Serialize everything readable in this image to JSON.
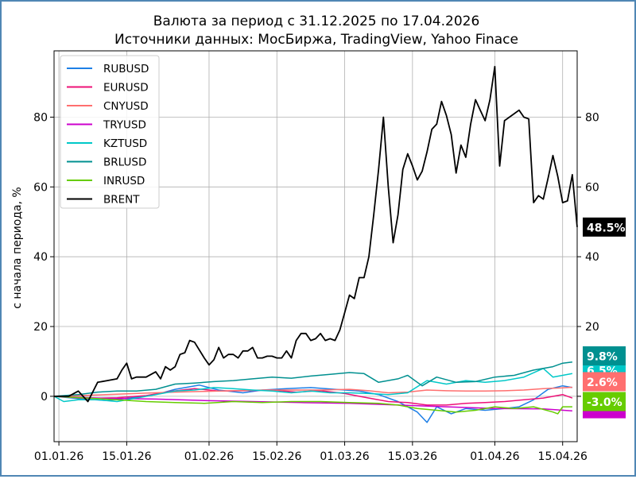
{
  "chart_data": {
    "type": "line",
    "title": "Валюта за период с 31.12.2025 по 17.04.2026",
    "subtitle": "Источники данных: МосБиржа, TradingView, Yahoo Finace",
    "ylabel": "с начала периода, %",
    "xlabel": "",
    "ylim": [
      -13,
      99
    ],
    "xlim": [
      -1,
      107
    ],
    "grid": true,
    "legend_position": "top-left",
    "x_ticks": [
      {
        "x": 0,
        "label": "01.01.26"
      },
      {
        "x": 14,
        "label": "15.01.26"
      },
      {
        "x": 31,
        "label": "01.02.26"
      },
      {
        "x": 45,
        "label": "15.02.26"
      },
      {
        "x": 59,
        "label": "01.03.26"
      },
      {
        "x": 73,
        "label": "15.03.26"
      },
      {
        "x": 90,
        "label": "01.04.26"
      },
      {
        "x": 104,
        "label": "15.04.26"
      }
    ],
    "y_ticks": [
      0,
      20,
      40,
      60,
      80
    ],
    "end_labels": [
      {
        "series": "BRENT",
        "label": "48.5%",
        "color": "#000000"
      },
      {
        "series": "BRLUSD",
        "label": "9.8%",
        "color": "#009090"
      },
      {
        "series": "KZTUSD",
        "label": "6.5%",
        "color": "#00c8c8"
      },
      {
        "series": "CNYUSD",
        "label": "2.6%",
        "color": "#ff6f6f"
      },
      {
        "series": "INRUSD",
        "label": "-3.0%",
        "color": "#66cc00"
      }
    ],
    "series": [
      {
        "name": "RUBUSD",
        "color": "#1e7fe6",
        "points": [
          [
            -1,
            0
          ],
          [
            5,
            -0.8
          ],
          [
            10,
            -1.2
          ],
          [
            15,
            -0.4
          ],
          [
            20,
            0.5
          ],
          [
            24,
            2.0
          ],
          [
            29,
            3.2
          ],
          [
            33,
            1.8
          ],
          [
            38,
            1.0
          ],
          [
            42,
            1.8
          ],
          [
            47,
            2.2
          ],
          [
            52,
            2.5
          ],
          [
            57,
            2.0
          ],
          [
            62,
            1.5
          ],
          [
            66,
            0.5
          ],
          [
            70,
            -1.5
          ],
          [
            74,
            -4.5
          ],
          [
            76,
            -7.5
          ],
          [
            78,
            -3.0
          ],
          [
            81,
            -5.0
          ],
          [
            84,
            -3.5
          ],
          [
            88,
            -4.0
          ],
          [
            92,
            -3.5
          ],
          [
            95,
            -3.0
          ],
          [
            98,
            -1.0
          ],
          [
            101,
            2.0
          ],
          [
            104,
            3.0
          ],
          [
            106,
            2.5
          ]
        ]
      },
      {
        "name": "EURUSD",
        "color": "#ee1177",
        "points": [
          [
            -1,
            0
          ],
          [
            6,
            -0.6
          ],
          [
            12,
            -0.4
          ],
          [
            18,
            0.2
          ],
          [
            23,
            1.4
          ],
          [
            28,
            2.2
          ],
          [
            33,
            1.5
          ],
          [
            38,
            1.6
          ],
          [
            44,
            1.8
          ],
          [
            49,
            1.2
          ],
          [
            54,
            1.6
          ],
          [
            59,
            0.8
          ],
          [
            64,
            -0.5
          ],
          [
            68,
            -1.5
          ],
          [
            72,
            -1.8
          ],
          [
            76,
            -2.5
          ],
          [
            80,
            -2.5
          ],
          [
            84,
            -2.0
          ],
          [
            88,
            -1.8
          ],
          [
            92,
            -1.5
          ],
          [
            96,
            -1.0
          ],
          [
            100,
            -0.5
          ],
          [
            104,
            0.5
          ],
          [
            106,
            -0.5
          ]
        ]
      },
      {
        "name": "CNYUSD",
        "color": "#ff6f6f",
        "points": [
          [
            -1,
            0
          ],
          [
            6,
            0.3
          ],
          [
            12,
            0.6
          ],
          [
            18,
            0.9
          ],
          [
            24,
            1.2
          ],
          [
            30,
            1.4
          ],
          [
            36,
            1.6
          ],
          [
            42,
            1.8
          ],
          [
            48,
            1.8
          ],
          [
            54,
            1.8
          ],
          [
            60,
            2.0
          ],
          [
            64,
            1.6
          ],
          [
            68,
            1.0
          ],
          [
            72,
            1.2
          ],
          [
            76,
            1.8
          ],
          [
            80,
            1.6
          ],
          [
            84,
            1.5
          ],
          [
            88,
            1.5
          ],
          [
            92,
            1.6
          ],
          [
            96,
            1.8
          ],
          [
            100,
            2.2
          ],
          [
            104,
            2.4
          ],
          [
            106,
            2.6
          ]
        ]
      },
      {
        "name": "TRYUSD",
        "color": "#cc00cc",
        "points": [
          [
            -1,
            0
          ],
          [
            10,
            -0.6
          ],
          [
            20,
            -0.8
          ],
          [
            30,
            -1.2
          ],
          [
            40,
            -1.5
          ],
          [
            50,
            -1.8
          ],
          [
            60,
            -2.0
          ],
          [
            70,
            -2.5
          ],
          [
            80,
            -3.0
          ],
          [
            90,
            -3.5
          ],
          [
            100,
            -3.6
          ],
          [
            106,
            -4.2
          ]
        ]
      },
      {
        "name": "KZTUSD",
        "color": "#00c8c8",
        "points": [
          [
            -1,
            0
          ],
          [
            1,
            -1.5
          ],
          [
            4,
            -1.0
          ],
          [
            8,
            -1.0
          ],
          [
            12,
            -1.5
          ],
          [
            16,
            -0.5
          ],
          [
            20,
            0.5
          ],
          [
            24,
            1.5
          ],
          [
            28,
            1.8
          ],
          [
            32,
            2.5
          ],
          [
            36,
            2.2
          ],
          [
            40,
            1.8
          ],
          [
            44,
            1.5
          ],
          [
            48,
            1.0
          ],
          [
            52,
            1.5
          ],
          [
            56,
            1.0
          ],
          [
            60,
            1.0
          ],
          [
            64,
            0.8
          ],
          [
            68,
            0.5
          ],
          [
            72,
            1.0
          ],
          [
            76,
            4.5
          ],
          [
            80,
            3.5
          ],
          [
            84,
            4.5
          ],
          [
            88,
            4.0
          ],
          [
            92,
            4.5
          ],
          [
            96,
            5.5
          ],
          [
            100,
            8.0
          ],
          [
            102,
            5.5
          ],
          [
            104,
            6.0
          ],
          [
            106,
            6.5
          ]
        ]
      },
      {
        "name": "BRLUSD",
        "color": "#009090",
        "points": [
          [
            -1,
            0
          ],
          [
            4,
            0.5
          ],
          [
            8,
            1.2
          ],
          [
            12,
            1.5
          ],
          [
            16,
            1.5
          ],
          [
            20,
            2.0
          ],
          [
            24,
            3.5
          ],
          [
            28,
            3.8
          ],
          [
            32,
            4.2
          ],
          [
            36,
            4.5
          ],
          [
            40,
            5.0
          ],
          [
            44,
            5.5
          ],
          [
            48,
            5.2
          ],
          [
            52,
            5.8
          ],
          [
            56,
            6.3
          ],
          [
            60,
            6.8
          ],
          [
            63,
            6.5
          ],
          [
            66,
            4.0
          ],
          [
            70,
            5.0
          ],
          [
            72,
            6.0
          ],
          [
            75,
            3.0
          ],
          [
            78,
            5.5
          ],
          [
            82,
            4.0
          ],
          [
            86,
            4.2
          ],
          [
            90,
            5.5
          ],
          [
            94,
            6.0
          ],
          [
            98,
            7.5
          ],
          [
            102,
            8.5
          ],
          [
            104,
            9.5
          ],
          [
            106,
            9.8
          ]
        ]
      },
      {
        "name": "INRUSD",
        "color": "#66cc00",
        "points": [
          [
            -1,
            0
          ],
          [
            6,
            -0.5
          ],
          [
            12,
            -1.0
          ],
          [
            18,
            -1.5
          ],
          [
            24,
            -1.8
          ],
          [
            30,
            -2.0
          ],
          [
            36,
            -1.5
          ],
          [
            42,
            -1.8
          ],
          [
            48,
            -1.5
          ],
          [
            54,
            -1.5
          ],
          [
            60,
            -1.8
          ],
          [
            66,
            -2.0
          ],
          [
            70,
            -2.5
          ],
          [
            74,
            -3.5
          ],
          [
            78,
            -4.0
          ],
          [
            82,
            -4.5
          ],
          [
            86,
            -4.0
          ],
          [
            90,
            -3.0
          ],
          [
            94,
            -3.5
          ],
          [
            98,
            -3.0
          ],
          [
            102,
            -4.5
          ],
          [
            103,
            -5.0
          ],
          [
            104,
            -3.0
          ],
          [
            106,
            -3.0
          ]
        ]
      },
      {
        "name": "BRENT",
        "color": "#000000",
        "points": [
          [
            -1,
            0
          ],
          [
            2,
            0
          ],
          [
            4,
            1.5
          ],
          [
            6,
            -1.5
          ],
          [
            8,
            4
          ],
          [
            10,
            4.5
          ],
          [
            12,
            5
          ],
          [
            13,
            7.5
          ],
          [
            14,
            9.5
          ],
          [
            15,
            5
          ],
          [
            16,
            5.5
          ],
          [
            18,
            5.5
          ],
          [
            20,
            7
          ],
          [
            21,
            5
          ],
          [
            22,
            8.5
          ],
          [
            23,
            7.5
          ],
          [
            24,
            8.5
          ],
          [
            25,
            12
          ],
          [
            26,
            12.5
          ],
          [
            27,
            16
          ],
          [
            28,
            15.5
          ],
          [
            30,
            11
          ],
          [
            31,
            9
          ],
          [
            32,
            10.5
          ],
          [
            33,
            14
          ],
          [
            34,
            11
          ],
          [
            35,
            12
          ],
          [
            36,
            12
          ],
          [
            37,
            11
          ],
          [
            38,
            13
          ],
          [
            39,
            13
          ],
          [
            40,
            14
          ],
          [
            41,
            11
          ],
          [
            42,
            11
          ],
          [
            43,
            11.5
          ],
          [
            44,
            11.5
          ],
          [
            45,
            11
          ],
          [
            46,
            11
          ],
          [
            47,
            13
          ],
          [
            48,
            11
          ],
          [
            49,
            16
          ],
          [
            50,
            18
          ],
          [
            51,
            18
          ],
          [
            52,
            16
          ],
          [
            53,
            16.5
          ],
          [
            54,
            18
          ],
          [
            55,
            16
          ],
          [
            56,
            16.5
          ],
          [
            57,
            16
          ],
          [
            58,
            19
          ],
          [
            59,
            24
          ],
          [
            60,
            29
          ],
          [
            61,
            28
          ],
          [
            62,
            34
          ],
          [
            63,
            34
          ],
          [
            64,
            40
          ],
          [
            65,
            52
          ],
          [
            66,
            65
          ],
          [
            67,
            80
          ],
          [
            68,
            60
          ],
          [
            69,
            44
          ],
          [
            70,
            52
          ],
          [
            71,
            65
          ],
          [
            72,
            69.5
          ],
          [
            73,
            66
          ],
          [
            74,
            62
          ],
          [
            75,
            64.5
          ],
          [
            76,
            70
          ],
          [
            77,
            76.5
          ],
          [
            78,
            78
          ],
          [
            79,
            84.5
          ],
          [
            80,
            80.5
          ],
          [
            81,
            75
          ],
          [
            82,
            64
          ],
          [
            83,
            72
          ],
          [
            84,
            68.5
          ],
          [
            85,
            78
          ],
          [
            86,
            85
          ],
          [
            87,
            82
          ],
          [
            88,
            79
          ],
          [
            89,
            85
          ],
          [
            90,
            94.5
          ],
          [
            91,
            66
          ],
          [
            92,
            79
          ],
          [
            93,
            80
          ],
          [
            94,
            81
          ],
          [
            95,
            82
          ],
          [
            96,
            80
          ],
          [
            97,
            79.5
          ],
          [
            98,
            55.5
          ],
          [
            99,
            57.5
          ],
          [
            100,
            56.5
          ],
          [
            101,
            62.5
          ],
          [
            102,
            69
          ],
          [
            103,
            63
          ],
          [
            104,
            55.5
          ],
          [
            105,
            56
          ],
          [
            106,
            63.5
          ],
          [
            107,
            48.5
          ]
        ]
      }
    ]
  }
}
